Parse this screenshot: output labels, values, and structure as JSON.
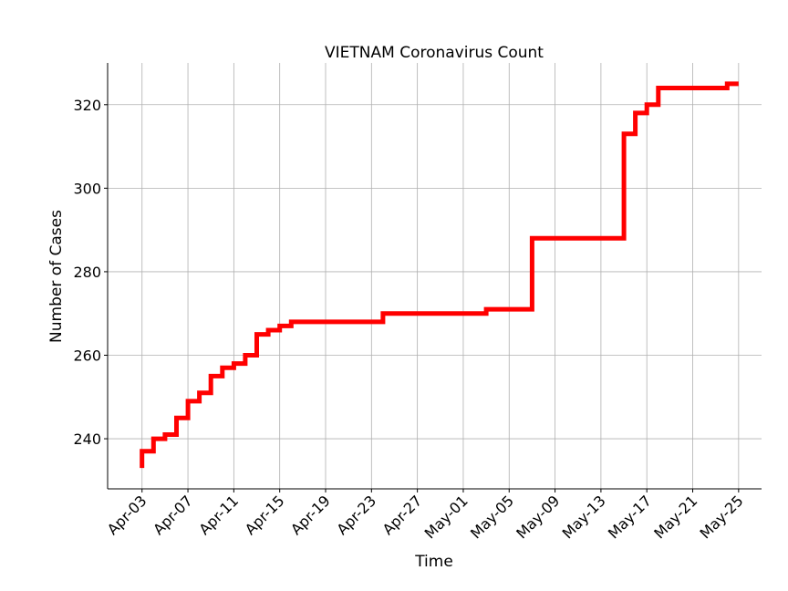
{
  "chart_data": {
    "type": "line",
    "title": "VIETNAM Coronavirus Count",
    "xlabel": "Time",
    "ylabel": "Number of Cases",
    "grid": true,
    "line_color": "#ff0000",
    "xlim": [
      "2020-04-00",
      "2020-05-27"
    ],
    "ylim": [
      228,
      330
    ],
    "x_ticks": [
      "Apr-03",
      "Apr-07",
      "Apr-11",
      "Apr-15",
      "Apr-19",
      "Apr-23",
      "Apr-27",
      "May-01",
      "May-05",
      "May-09",
      "May-13",
      "May-17",
      "May-21",
      "May-25"
    ],
    "y_ticks": [
      240,
      260,
      280,
      300,
      320
    ],
    "series": [
      {
        "step": "post",
        "points": [
          [
            "Apr-03",
            233
          ],
          [
            "Apr-03",
            237
          ],
          [
            "Apr-04",
            240
          ],
          [
            "Apr-05",
            241
          ],
          [
            "Apr-06",
            245
          ],
          [
            "Apr-07",
            249
          ],
          [
            "Apr-08",
            251
          ],
          [
            "Apr-09",
            255
          ],
          [
            "Apr-10",
            257
          ],
          [
            "Apr-11",
            258
          ],
          [
            "Apr-12",
            260
          ],
          [
            "Apr-13",
            265
          ],
          [
            "Apr-14",
            266
          ],
          [
            "Apr-15",
            267
          ],
          [
            "Apr-16",
            268
          ],
          [
            "Apr-24",
            270
          ],
          [
            "May-03",
            271
          ],
          [
            "May-07",
            288
          ],
          [
            "May-15",
            313
          ],
          [
            "May-16",
            318
          ],
          [
            "May-17",
            320
          ],
          [
            "May-18",
            324
          ],
          [
            "May-24",
            325
          ],
          [
            "May-25",
            325
          ]
        ]
      }
    ]
  }
}
